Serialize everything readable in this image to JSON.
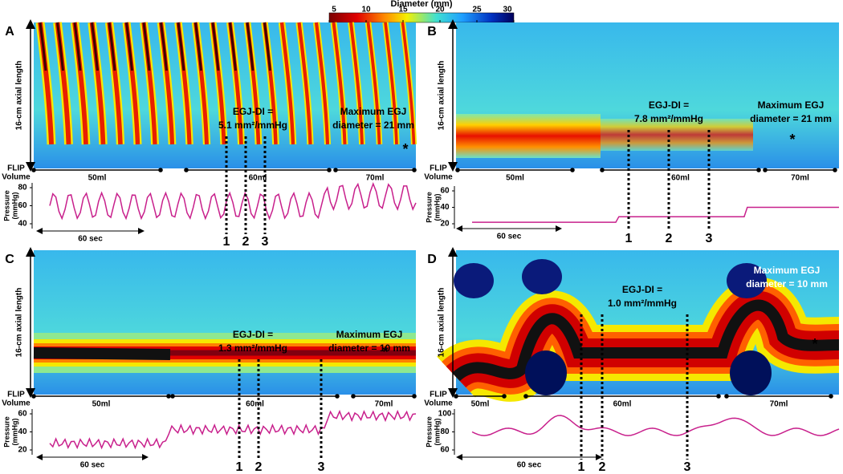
{
  "colorbar": {
    "title": "Diameter (mm)",
    "ticks": [
      5,
      10,
      15,
      20,
      25,
      30
    ]
  },
  "panels": [
    {
      "label": "A",
      "axis_label": "16-cm axial length",
      "flip": [
        "FLIP",
        "Volume"
      ],
      "volumes": [
        "50ml",
        "60ml",
        "70ml"
      ],
      "egj_di": [
        "EGJ-DI =",
        "5.1 mm²/mmHg"
      ],
      "max_egj": [
        "Maximum EGJ",
        "diameter = 21 mm"
      ],
      "asterisk": "*",
      "pressure_label": [
        "Pressure",
        "(mmHg)"
      ],
      "pressure_ticks": [
        40,
        60,
        80
      ],
      "time_label": "60 sec",
      "markers": [
        "1",
        "2",
        "3"
      ]
    },
    {
      "label": "B",
      "axis_label": "16-cm axial length",
      "flip": [
        "FLIP",
        "Volume"
      ],
      "volumes": [
        "50ml",
        "60ml",
        "70ml"
      ],
      "egj_di": [
        "EGJ-DI =",
        "7.8 mm²/mmHg"
      ],
      "max_egj": [
        "Maximum EGJ",
        "diameter = 21 mm"
      ],
      "asterisk": "*",
      "pressure_label": [
        "Pressure",
        "(mmHg)"
      ],
      "pressure_ticks": [
        20,
        40,
        60
      ],
      "time_label": "60 sec",
      "markers": [
        "1",
        "2",
        "3"
      ]
    },
    {
      "label": "C",
      "axis_label": "16-cm axial length",
      "flip": [
        "FLIP",
        "Volume"
      ],
      "volumes": [
        "50ml",
        "60ml",
        "70ml"
      ],
      "egj_di": [
        "EGJ-DI =",
        "1.3 mm²/mmHg"
      ],
      "max_egj": [
        "Maximum EGJ",
        "diameter = 10 mm"
      ],
      "asterisk": "*",
      "pressure_label": [
        "Pressure",
        "(mmHg)"
      ],
      "pressure_ticks": [
        20,
        40,
        60
      ],
      "time_label": "60 sec",
      "markers": [
        "1",
        "2",
        "3"
      ]
    },
    {
      "label": "D",
      "axis_label": "16-cm axial length",
      "flip": [
        "FLIP",
        "Volume"
      ],
      "volumes": [
        "50ml",
        "60ml",
        "70ml"
      ],
      "egj_di": [
        "EGJ-DI =",
        "1.0 mm²/mmHg"
      ],
      "max_egj": [
        "Maximum EGJ",
        "diameter = 10 mm"
      ],
      "asterisk": "*",
      "pressure_label": [
        "Pressure",
        "(mmHg)"
      ],
      "pressure_ticks": [
        60,
        80,
        100
      ],
      "time_label": "60 sec",
      "markers": [
        "1",
        "2",
        "3"
      ]
    }
  ]
}
